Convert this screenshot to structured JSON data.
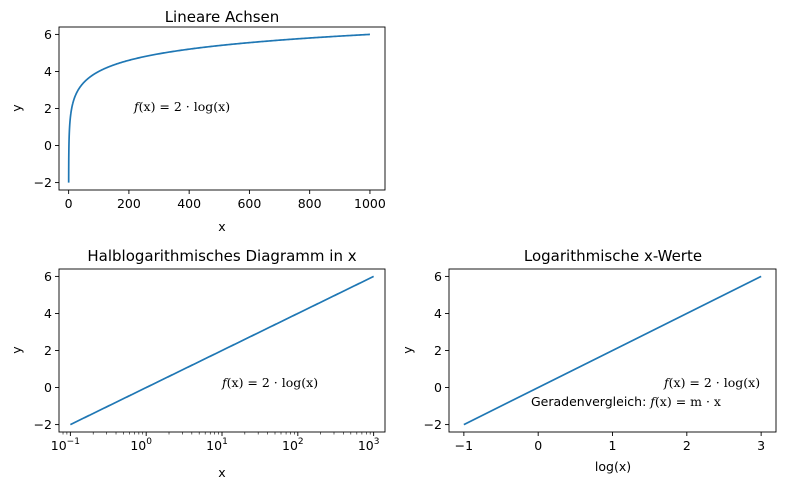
{
  "chart_data": [
    {
      "type": "line",
      "title": "Lineare Achsen",
      "xlabel": "x",
      "ylabel": "y",
      "xscale": "linear",
      "xlim": [
        -32,
        1050
      ],
      "ylim": [
        -2.4,
        6.4
      ],
      "xticks": [
        "0",
        "200",
        "400",
        "600",
        "800",
        "1000"
      ],
      "yticks": [
        "−2",
        "0",
        "2",
        "4",
        "6"
      ],
      "series": [
        {
          "x_range": [
            0.1,
            1000
          ],
          "function": "2*log10(x)",
          "y_range": [
            -2,
            6
          ]
        }
      ],
      "annotation": {
        "text_f": "f",
        "text_x": "(x) = 2 · log(x)",
        "pos": [
          200,
          2
        ]
      },
      "grid": false
    },
    {
      "type": "line",
      "title": "Halblogarithmisches Diagramm in x",
      "xlabel": "x",
      "ylabel": "y",
      "xscale": "log",
      "xlim": [
        0.0708,
        1412
      ],
      "ylim": [
        -2.4,
        6.4
      ],
      "xticks": [
        "10",
        "10",
        "10",
        "10",
        "10"
      ],
      "xtick_exponents": [
        "−1",
        "0",
        "1",
        "2",
        "3"
      ],
      "yticks": [
        "−2",
        "0",
        "2",
        "4",
        "6"
      ],
      "series": [
        {
          "x_range": [
            0.1,
            1000
          ],
          "function": "2*log10(x)",
          "y_range": [
            -2,
            6
          ]
        }
      ],
      "annotation": {
        "text_f": "f",
        "text_x": "(x) = 2 · log(x)",
        "pos": [
          10,
          0
        ]
      },
      "grid": false
    },
    {
      "type": "line",
      "title": "Logarithmische x-Werte",
      "xlabel": "log(x)",
      "ylabel": "y",
      "xscale": "linear",
      "xlim": [
        -1.2,
        3.2
      ],
      "ylim": [
        -2.4,
        6.4
      ],
      "xticks": [
        "−1",
        "0",
        "1",
        "2",
        "3"
      ],
      "yticks": [
        "−2",
        "0",
        "2",
        "4",
        "6"
      ],
      "series": [
        {
          "x": [
            -1,
            3
          ],
          "y": [
            -2,
            6
          ]
        }
      ],
      "annotations": [
        {
          "text_f": "f",
          "text_x": "(x) = 2 · log(x)",
          "pos": [
            1.7,
            0
          ]
        },
        {
          "prefix": "Geradenvergleich: ",
          "text_f": "f",
          "text_x": "(x) = m · x",
          "pos": [
            -0.1,
            -0.9
          ]
        }
      ],
      "grid": false
    }
  ],
  "colors": {
    "line": "#1f77b4",
    "axes": "#000000",
    "background": "#ffffff"
  }
}
